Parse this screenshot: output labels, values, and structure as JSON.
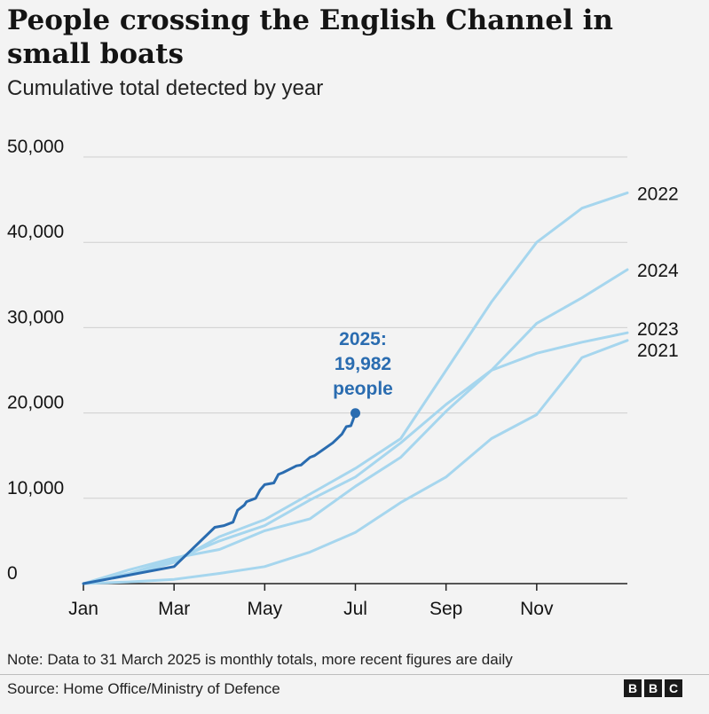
{
  "title": "People crossing the English Channel in small boats",
  "subtitle": "Cumulative total detected by year",
  "note": "Note: Data to 31 March 2025 is monthly totals, more recent figures are daily",
  "source": "Source: Home Office/Ministry of Defence",
  "logo": [
    "B",
    "B",
    "C"
  ],
  "colors": {
    "past_years": "#a6d6ee",
    "current_year": "#2a6cb0",
    "grid": "#cfcfcf",
    "axis": "#222222",
    "text": "#141414"
  },
  "chart_data": {
    "type": "line",
    "ylim": [
      0,
      50000
    ],
    "xlim": [
      0,
      12
    ],
    "y_ticks": [
      {
        "value": 0,
        "label": "0"
      },
      {
        "value": 10000,
        "label": "10,000"
      },
      {
        "value": 20000,
        "label": "20,000"
      },
      {
        "value": 30000,
        "label": "30,000"
      },
      {
        "value": 40000,
        "label": "40,000"
      },
      {
        "value": 50000,
        "label": "50,000"
      }
    ],
    "x_ticks": [
      {
        "value": 0,
        "label": "Jan"
      },
      {
        "value": 2,
        "label": "Mar"
      },
      {
        "value": 4,
        "label": "May"
      },
      {
        "value": 6,
        "label": "Jul"
      },
      {
        "value": 8,
        "label": "Sep"
      },
      {
        "value": 10,
        "label": "Nov"
      }
    ],
    "series": [
      {
        "name": "2022",
        "label": "2022",
        "highlight": false,
        "x": [
          0,
          1,
          2,
          3,
          4,
          5,
          6,
          7,
          8,
          9,
          10,
          11,
          12
        ],
        "y": [
          0,
          1000,
          2500,
          5500,
          7500,
          10500,
          13500,
          17000,
          25000,
          33000,
          40000,
          44000,
          45800
        ]
      },
      {
        "name": "2024",
        "label": "2024",
        "highlight": false,
        "x": [
          0,
          1,
          2,
          3,
          4,
          5,
          6,
          7,
          8,
          9,
          10,
          11,
          12
        ],
        "y": [
          0,
          1200,
          2800,
          5000,
          6800,
          9800,
          12500,
          16500,
          21000,
          25000,
          30500,
          33500,
          36800
        ]
      },
      {
        "name": "2023",
        "label": "2023",
        "highlight": false,
        "x": [
          0,
          1,
          2,
          3,
          4,
          5,
          6,
          7,
          8,
          9,
          10,
          11,
          12
        ],
        "y": [
          0,
          1600,
          3000,
          4000,
          6200,
          7600,
          11400,
          14800,
          20200,
          25000,
          27000,
          28300,
          29400
        ]
      },
      {
        "name": "2021",
        "label": "2021",
        "highlight": false,
        "x": [
          0,
          1,
          2,
          3,
          4,
          5,
          6,
          7,
          8,
          9,
          10,
          11,
          12
        ],
        "y": [
          0,
          200,
          500,
          1200,
          2000,
          3700,
          6000,
          9500,
          12500,
          17000,
          19800,
          26500,
          28500
        ]
      },
      {
        "name": "2025",
        "label": "",
        "highlight": true,
        "x": [
          0,
          2,
          2.9,
          3.1,
          3.3,
          3.4,
          3.55,
          3.6,
          3.8,
          3.9,
          4.0,
          4.2,
          4.3,
          4.4,
          4.7,
          4.8,
          5.0,
          5.1,
          5.5,
          5.7,
          5.8,
          5.9,
          5.95,
          6.0
        ],
        "y": [
          0,
          2000,
          6600,
          6800,
          7200,
          8600,
          9200,
          9600,
          10000,
          11000,
          11600,
          11800,
          12800,
          13000,
          13800,
          13900,
          14800,
          15000,
          16500,
          17500,
          18400,
          18500,
          19200,
          19982
        ]
      }
    ],
    "annotation": {
      "lines": [
        "2025:",
        "19,982",
        "people"
      ],
      "x": 6,
      "y": 19982
    }
  }
}
